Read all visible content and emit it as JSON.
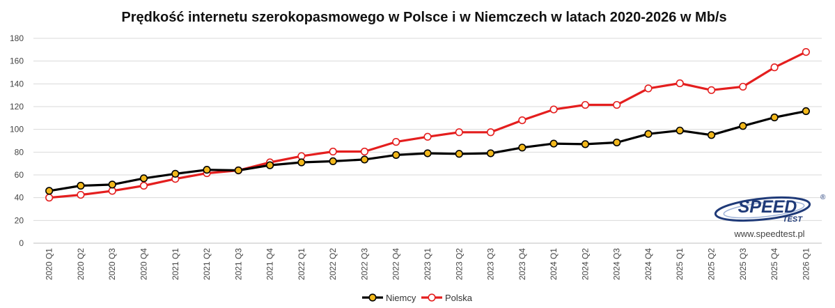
{
  "chart_data": {
    "type": "line",
    "title": "Prędkość internetu szerokopasmowego w Polsce i w Niemczech w latach 2020-2026 w Mb/s",
    "xlabel": "",
    "ylabel": "",
    "ylim": [
      0,
      180
    ],
    "yticks": [
      0,
      20,
      40,
      60,
      80,
      100,
      120,
      140,
      160,
      180
    ],
    "grid": true,
    "legend_position": "bottom",
    "categories": [
      "2020 Q1",
      "2020 Q2",
      "2020 Q3",
      "2020 Q4",
      "2021 Q1",
      "2021 Q2",
      "2021 Q3",
      "2021 Q4",
      "2022 Q1",
      "2022 Q2",
      "2022 Q3",
      "2022 Q4",
      "2023 Q1",
      "2023 Q2",
      "2023 Q3",
      "2023 Q4",
      "2024 Q1",
      "2024 Q2",
      "2024 Q3",
      "2024 Q4",
      "2025 Q1",
      "2025 Q2",
      "2025 Q3",
      "2025 Q4",
      "2026 Q1"
    ],
    "series": [
      {
        "name": "Niemcy",
        "line_color": "#000000",
        "marker_fill": "#f2b81c",
        "values": [
          46,
          50.5,
          51.5,
          57,
          61,
          64.5,
          64,
          68.5,
          71,
          72,
          73.5,
          77.5,
          79,
          78.5,
          79,
          84,
          87.5,
          87,
          88.5,
          96,
          99,
          95,
          103,
          110.5,
          116
        ]
      },
      {
        "name": "Polska",
        "line_color": "#e41e1e",
        "marker_fill": "#ffffff",
        "values": [
          40,
          42.5,
          46,
          50.5,
          56.5,
          61.5,
          64,
          71,
          76.5,
          80.5,
          80.5,
          89,
          93.5,
          97.5,
          97.5,
          108,
          117.5,
          121.5,
          121.5,
          136,
          140.5,
          134.5,
          137.5,
          154.5,
          168
        ]
      }
    ]
  },
  "logo": {
    "word_main": "SPEED",
    "word_sub": "TEST",
    "registered": "®",
    "url": "www.speedtest.pl"
  }
}
